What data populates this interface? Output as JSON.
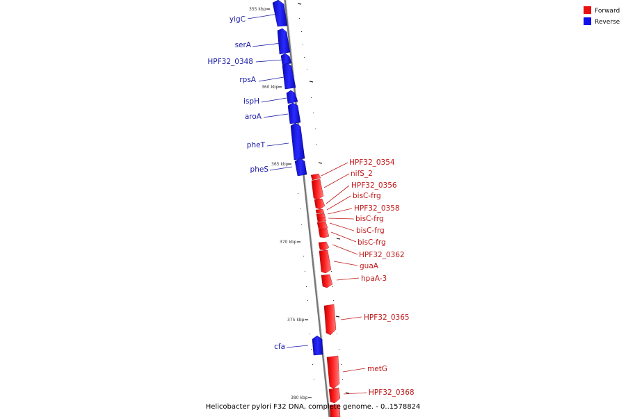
{
  "caption": "Helicobacter pylori F32 DNA, complete genome. - 0..1578824",
  "legend": [
    {
      "label": "Forward",
      "color": "#e81010"
    },
    {
      "label": "Reverse",
      "color": "#1010e8"
    }
  ],
  "ticks": [
    {
      "kbp": 355,
      "label": "355 kbp"
    },
    {
      "kbp": 360,
      "label": "360 kbp"
    },
    {
      "kbp": 365,
      "label": "365 kbp"
    },
    {
      "kbp": 370,
      "label": "370 kbp"
    },
    {
      "kbp": 375,
      "label": "375 kbp"
    },
    {
      "kbp": 380,
      "label": "380 kbp"
    }
  ],
  "genes": [
    {
      "name": "yigC",
      "strand": "reverse"
    },
    {
      "name": "serA",
      "strand": "reverse"
    },
    {
      "name": "HPF32_0348",
      "strand": "reverse"
    },
    {
      "name": "rpsA",
      "strand": "reverse"
    },
    {
      "name": "ispH",
      "strand": "reverse"
    },
    {
      "name": "aroA",
      "strand": "reverse"
    },
    {
      "name": "pheT",
      "strand": "reverse"
    },
    {
      "name": "pheS",
      "strand": "reverse"
    },
    {
      "name": "HPF32_0354",
      "strand": "forward"
    },
    {
      "name": "nifS_2",
      "strand": "forward"
    },
    {
      "name": "HPF32_0356",
      "strand": "forward"
    },
    {
      "name": "bisC-frg",
      "strand": "forward"
    },
    {
      "name": "HPF32_0358",
      "strand": "forward"
    },
    {
      "name": "bisC-frg",
      "strand": "forward"
    },
    {
      "name": "bisC-frg",
      "strand": "forward"
    },
    {
      "name": "bisC-frg",
      "strand": "forward"
    },
    {
      "name": "HPF32_0362",
      "strand": "forward"
    },
    {
      "name": "guaA",
      "strand": "forward"
    },
    {
      "name": "hpaA-3",
      "strand": "forward"
    },
    {
      "name": "HPF32_0365",
      "strand": "forward"
    },
    {
      "name": "cfa",
      "strand": "reverse"
    },
    {
      "name": "metG",
      "strand": "forward"
    },
    {
      "name": "HPF32_0368",
      "strand": "forward"
    }
  ]
}
